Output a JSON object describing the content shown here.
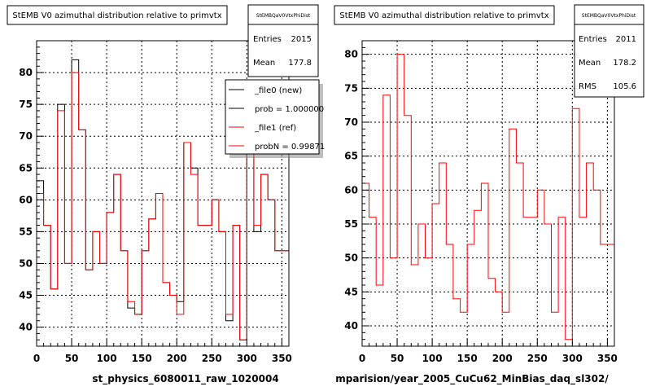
{
  "footer_text": "",
  "chart_data": [
    {
      "type": "histogram",
      "title": "StEMB V0 azimuthal distribution relative to primvtx",
      "xlabel": "st_physics_6080011_raw_1020004",
      "ylabel": "",
      "xlim": [
        0,
        360
      ],
      "ylim": [
        37,
        85
      ],
      "bin_width": 10,
      "x_ticks": [
        0,
        50,
        100,
        150,
        200,
        250,
        300,
        350
      ],
      "y_ticks": [
        40,
        45,
        50,
        55,
        60,
        65,
        70,
        75,
        80
      ],
      "grid": true,
      "stats": {
        "name": "StEMBQaV0VtxPhiDist",
        "entries_label": "Entries",
        "entries": "2015",
        "mean_label": "Mean",
        "mean": "177.8"
      },
      "legend": {
        "position": "top-right",
        "entries": [
          "_file0 (new)",
          "prob = 1.000000",
          "_file1 (ref)",
          "probN = 0.99871"
        ]
      },
      "series": [
        {
          "name": "_file0 (new)",
          "color": "#000000",
          "values": [
            63,
            56,
            46,
            75,
            50,
            82,
            71,
            49,
            55,
            50,
            58,
            64,
            52,
            43,
            42,
            52,
            57,
            61,
            47,
            45,
            44,
            69,
            65,
            56,
            56,
            60,
            55,
            41,
            56,
            38,
            73,
            55,
            64,
            60,
            52,
            52
          ]
        },
        {
          "name": "_file1 (ref)",
          "color": "#ff0000",
          "values": [
            61,
            56,
            46,
            74,
            50,
            80,
            71,
            49,
            55,
            50,
            58,
            64,
            52,
            44,
            42,
            52,
            57,
            61,
            47,
            45,
            42,
            69,
            64,
            56,
            56,
            60,
            55,
            42,
            56,
            38,
            72,
            56,
            64,
            60,
            52,
            52
          ]
        }
      ]
    },
    {
      "type": "histogram",
      "title": "StEMB V0 azimuthal distribution relative to primvtx",
      "xlabel": "mparision/year_2005_CuCu62_MinBias_daq_sl302/",
      "ylabel": "",
      "xlim": [
        0,
        360
      ],
      "ylim": [
        37,
        82
      ],
      "bin_width": 10,
      "x_ticks": [
        0,
        50,
        100,
        150,
        200,
        250,
        300,
        350
      ],
      "y_ticks": [
        40,
        45,
        50,
        55,
        60,
        65,
        70,
        75,
        80
      ],
      "grid": true,
      "stats": {
        "name": "StEMBQaV0VtxPhiDist",
        "entries_label": "Entries",
        "entries": "2011",
        "mean_label": "Mean",
        "mean": "178.2",
        "rms_label": "RMS",
        "rms": "105.6"
      },
      "series": [
        {
          "name": "",
          "color": "#ff0000",
          "values": [
            61,
            56,
            46,
            74,
            50,
            80,
            71,
            49,
            55,
            50,
            58,
            64,
            52,
            44,
            42,
            52,
            57,
            61,
            47,
            45,
            42,
            69,
            64,
            56,
            56,
            60,
            55,
            42,
            56,
            38,
            72,
            56,
            64,
            60,
            52,
            52
          ]
        }
      ]
    }
  ]
}
